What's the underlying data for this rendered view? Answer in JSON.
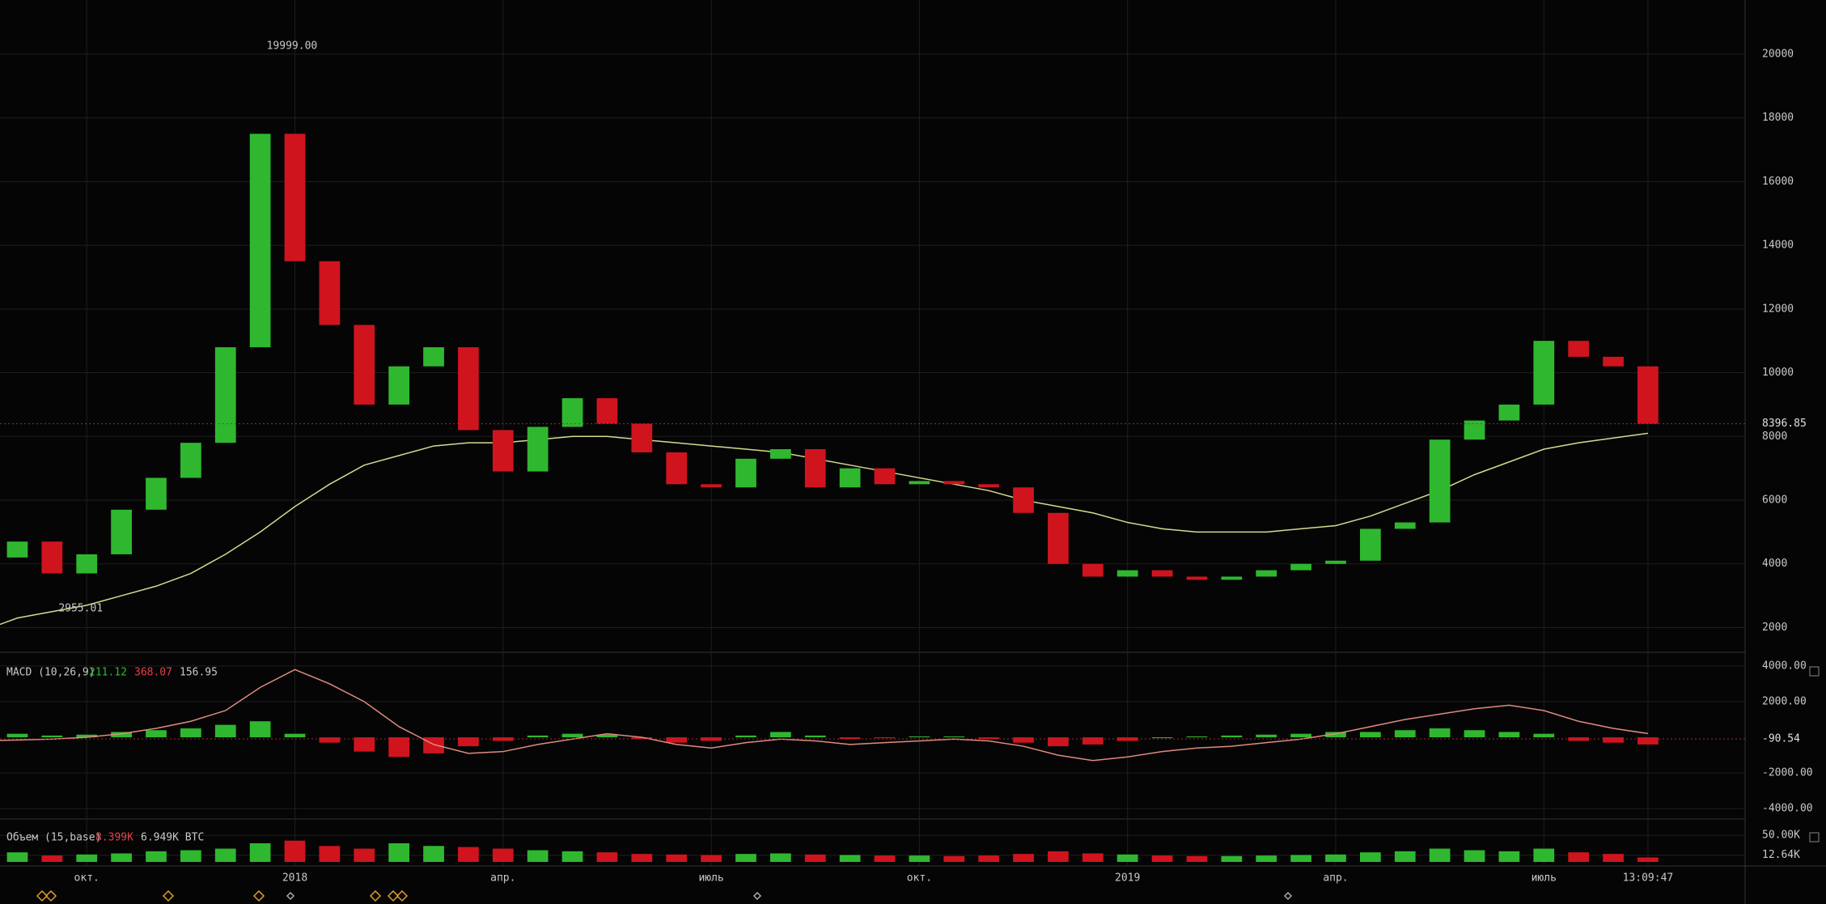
{
  "chart_data": [
    {
      "type": "candlestick",
      "xlim": [
        0.5,
        50.8
      ],
      "xticks": [
        {
          "value": 3,
          "label": "окт."
        },
        {
          "value": 9,
          "label": "2018"
        },
        {
          "value": 15,
          "label": "апр."
        },
        {
          "value": 21,
          "label": "июль"
        },
        {
          "value": 27,
          "label": "окт."
        },
        {
          "value": 33,
          "label": "2019"
        },
        {
          "value": 39,
          "label": "апр."
        },
        {
          "value": 45,
          "label": "июль"
        },
        {
          "value": 48,
          "label": "13:09:47"
        }
      ],
      "values": [
        4200,
        4700,
        3700,
        4300,
        5700,
        6700,
        7800,
        10800,
        17500,
        13500,
        11500,
        9000,
        10200,
        10800,
        8200,
        6900,
        8300,
        9200,
        8400,
        7500,
        6500,
        6400,
        7300,
        7600,
        6400,
        7000,
        6500,
        6600,
        6500,
        6400,
        5600,
        4000,
        3600,
        3800,
        3600,
        3500,
        3600,
        3800,
        4000,
        4100,
        5100,
        5300,
        7900,
        8500,
        9000,
        11000,
        10500,
        10200,
        8396.85
      ],
      "up_color": "#2fb82f",
      "down_color": "#d0141e",
      "ma": {
        "color": "#d8d890",
        "values": [
          1900,
          2300,
          2500,
          2700,
          3000,
          3300,
          3700,
          4300,
          5000,
          5800,
          6500,
          7100,
          7400,
          7700,
          7800,
          7800,
          7900,
          8000,
          8000,
          7900,
          7800,
          7700,
          7600,
          7500,
          7300,
          7100,
          6900,
          6700,
          6500,
          6300,
          6000,
          5800,
          5600,
          5300,
          5100,
          5000,
          5000,
          5000,
          5100,
          5200,
          5500,
          5900,
          6300,
          6800,
          7200,
          7600,
          7800,
          7950,
          8100
        ]
      },
      "ylim": [
        1300,
        21700
      ],
      "yticks": [
        2000,
        4000,
        6000,
        8000,
        10000,
        12000,
        14000,
        16000,
        18000,
        20000
      ],
      "grid": true,
      "annotations": [
        {
          "x": 8,
          "value": 19999,
          "label": "19999.00"
        },
        {
          "x": 2,
          "value": 2955.01,
          "label": "2955.01"
        }
      ],
      "last": {
        "value": 8396.85,
        "label": "8396.85"
      }
    },
    {
      "type": "macd",
      "title": "MACD (10,26,9)",
      "readouts": [
        211.12,
        368.07,
        156.95
      ],
      "readout_colors": [
        "#2fb82f",
        "#e0424a",
        "#c8c8c8"
      ],
      "values": [
        100,
        200,
        100,
        150,
        300,
        400,
        500,
        700,
        900,
        200,
        -300,
        -800,
        -1100,
        -900,
        -500,
        -200,
        100,
        200,
        150,
        -100,
        -300,
        -200,
        100,
        300,
        100,
        -100,
        -50,
        50,
        50,
        -100,
        -300,
        -500,
        -400,
        -200,
        0,
        50,
        100,
        150,
        200,
        300,
        300,
        400,
        500,
        400,
        300,
        200,
        -200,
        -300,
        -400
      ],
      "line": {
        "color": "#e08a80",
        "values": [
          -200,
          -150,
          -100,
          0,
          200,
          500,
          900,
          1500,
          2800,
          3800,
          3000,
          2000,
          600,
          -400,
          -900,
          -800,
          -400,
          -100,
          200,
          0,
          -400,
          -600,
          -300,
          -100,
          -200,
          -400,
          -300,
          -200,
          -100,
          -200,
          -500,
          -1000,
          -1300,
          -1100,
          -800,
          -600,
          -500,
          -300,
          -100,
          200,
          600,
          1000,
          1300,
          1600,
          1800,
          1500,
          900,
          500,
          211.12
        ]
      },
      "ylim": [
        -4400,
        4450
      ],
      "yticks": [
        {
          "value": 4000,
          "label": "4000.00"
        },
        {
          "value": 2000,
          "label": "2000.00"
        },
        {
          "value": -2000,
          "label": "-2000.00"
        },
        {
          "value": -4000,
          "label": "-4000.00"
        }
      ],
      "last": {
        "value": -90.54,
        "label": "-90.54"
      }
    },
    {
      "type": "volume",
      "title": "Объем (15,base)",
      "readouts": [
        {
          "value": 8399,
          "label": "8.399K"
        },
        {
          "value": 6949,
          "label": "6.949K BTC"
        }
      ],
      "readout_colors": [
        "#e0424a",
        "#c8c8c8"
      ],
      "values": [
        15000,
        18000,
        12000,
        14000,
        16000,
        20000,
        22000,
        25000,
        35000,
        40000,
        30000,
        25000,
        35000,
        30000,
        28000,
        25000,
        22000,
        20000,
        18000,
        15000,
        14000,
        13000,
        15000,
        16000,
        14000,
        13000,
        12000,
        12000,
        11000,
        12000,
        15000,
        20000,
        16000,
        14000,
        12000,
        11000,
        11000,
        12000,
        13000,
        14000,
        18000,
        20000,
        25000,
        22000,
        20000,
        25000,
        18000,
        15000,
        8399
      ],
      "ylim": [
        0,
        70000
      ],
      "yticks": [
        {
          "value": 50000,
          "label": "50.00K"
        },
        {
          "value": 12640,
          "label": "12.64K"
        }
      ]
    }
  ]
}
